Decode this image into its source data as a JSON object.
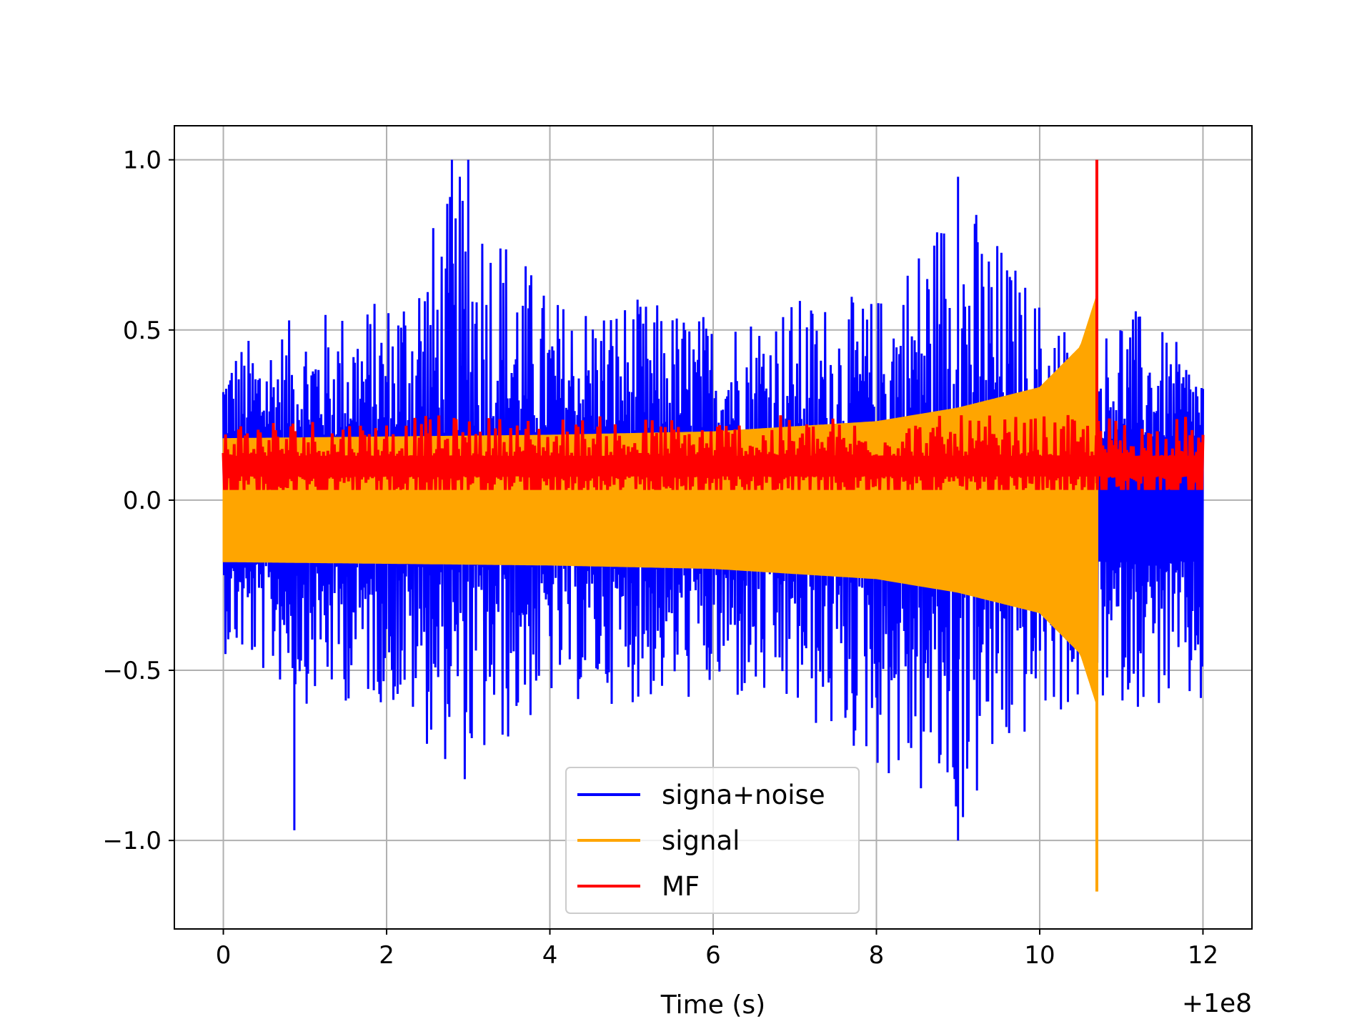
{
  "chart_data": {
    "type": "line",
    "title": "",
    "xlabel": "Time (s)",
    "ylabel": "",
    "x_offset_label": "+1e8",
    "xlim": [
      -0.6,
      12.6
    ],
    "ylim": [
      -1.26,
      1.1
    ],
    "grid": true,
    "legend_position": "lower-center",
    "x_ticks": [
      0,
      2,
      4,
      6,
      8,
      10,
      12
    ],
    "x_tick_labels": [
      "0",
      "2",
      "4",
      "6",
      "8",
      "10",
      "12"
    ],
    "y_ticks": [
      1.0,
      0.5,
      0.0,
      -0.5,
      -1.0
    ],
    "y_tick_labels": [
      "1.0",
      "0.5",
      "0.0",
      "−0.5",
      "−1.0"
    ],
    "series": [
      {
        "name": "signa+noise",
        "color": "#0000ff",
        "x_range": [
          0,
          12
        ],
        "upper_envelope": [
          [
            0,
            0.45
          ],
          [
            1,
            0.55
          ],
          [
            2,
            0.6
          ],
          [
            3,
            1.0
          ],
          [
            4,
            0.6
          ],
          [
            5,
            0.6
          ],
          [
            6,
            0.55
          ],
          [
            7,
            0.6
          ],
          [
            8,
            0.6
          ],
          [
            9,
            0.95
          ],
          [
            10,
            0.6
          ],
          [
            10.7,
            0.45
          ],
          [
            11,
            0.6
          ],
          [
            12,
            0.4
          ]
        ],
        "lower_envelope": [
          [
            0,
            -0.45
          ],
          [
            1,
            -0.6
          ],
          [
            2,
            -0.6
          ],
          [
            3,
            -0.85
          ],
          [
            4,
            -0.6
          ],
          [
            5,
            -0.6
          ],
          [
            6,
            -0.6
          ],
          [
            7,
            -0.65
          ],
          [
            8,
            -0.8
          ],
          [
            9,
            -1.0
          ],
          [
            10,
            -0.65
          ],
          [
            11,
            -0.6
          ],
          [
            12,
            -0.65
          ]
        ],
        "peaks": [
          [
            0.87,
            -0.97
          ],
          [
            2.8,
            1.0
          ],
          [
            3.0,
            1.0
          ],
          [
            9.0,
            0.95
          ],
          [
            9.0,
            -1.0
          ]
        ]
      },
      {
        "name": "signal",
        "color": "#ffa500",
        "x_range": [
          0,
          10.75
        ],
        "amplitude_envelope": [
          [
            0,
            0.18
          ],
          [
            2,
            0.185
          ],
          [
            4,
            0.19
          ],
          [
            6,
            0.2
          ],
          [
            8,
            0.23
          ],
          [
            9,
            0.27
          ],
          [
            10,
            0.33
          ],
          [
            10.5,
            0.45
          ],
          [
            10.7,
            0.6
          ]
        ],
        "min_value": -1.15,
        "min_at": 10.7
      },
      {
        "name": "MF",
        "color": "#ff0000",
        "x_range": [
          0,
          12
        ],
        "baseline": 0.1,
        "peak_value": 1.0,
        "peak_at": 10.7
      }
    ]
  }
}
